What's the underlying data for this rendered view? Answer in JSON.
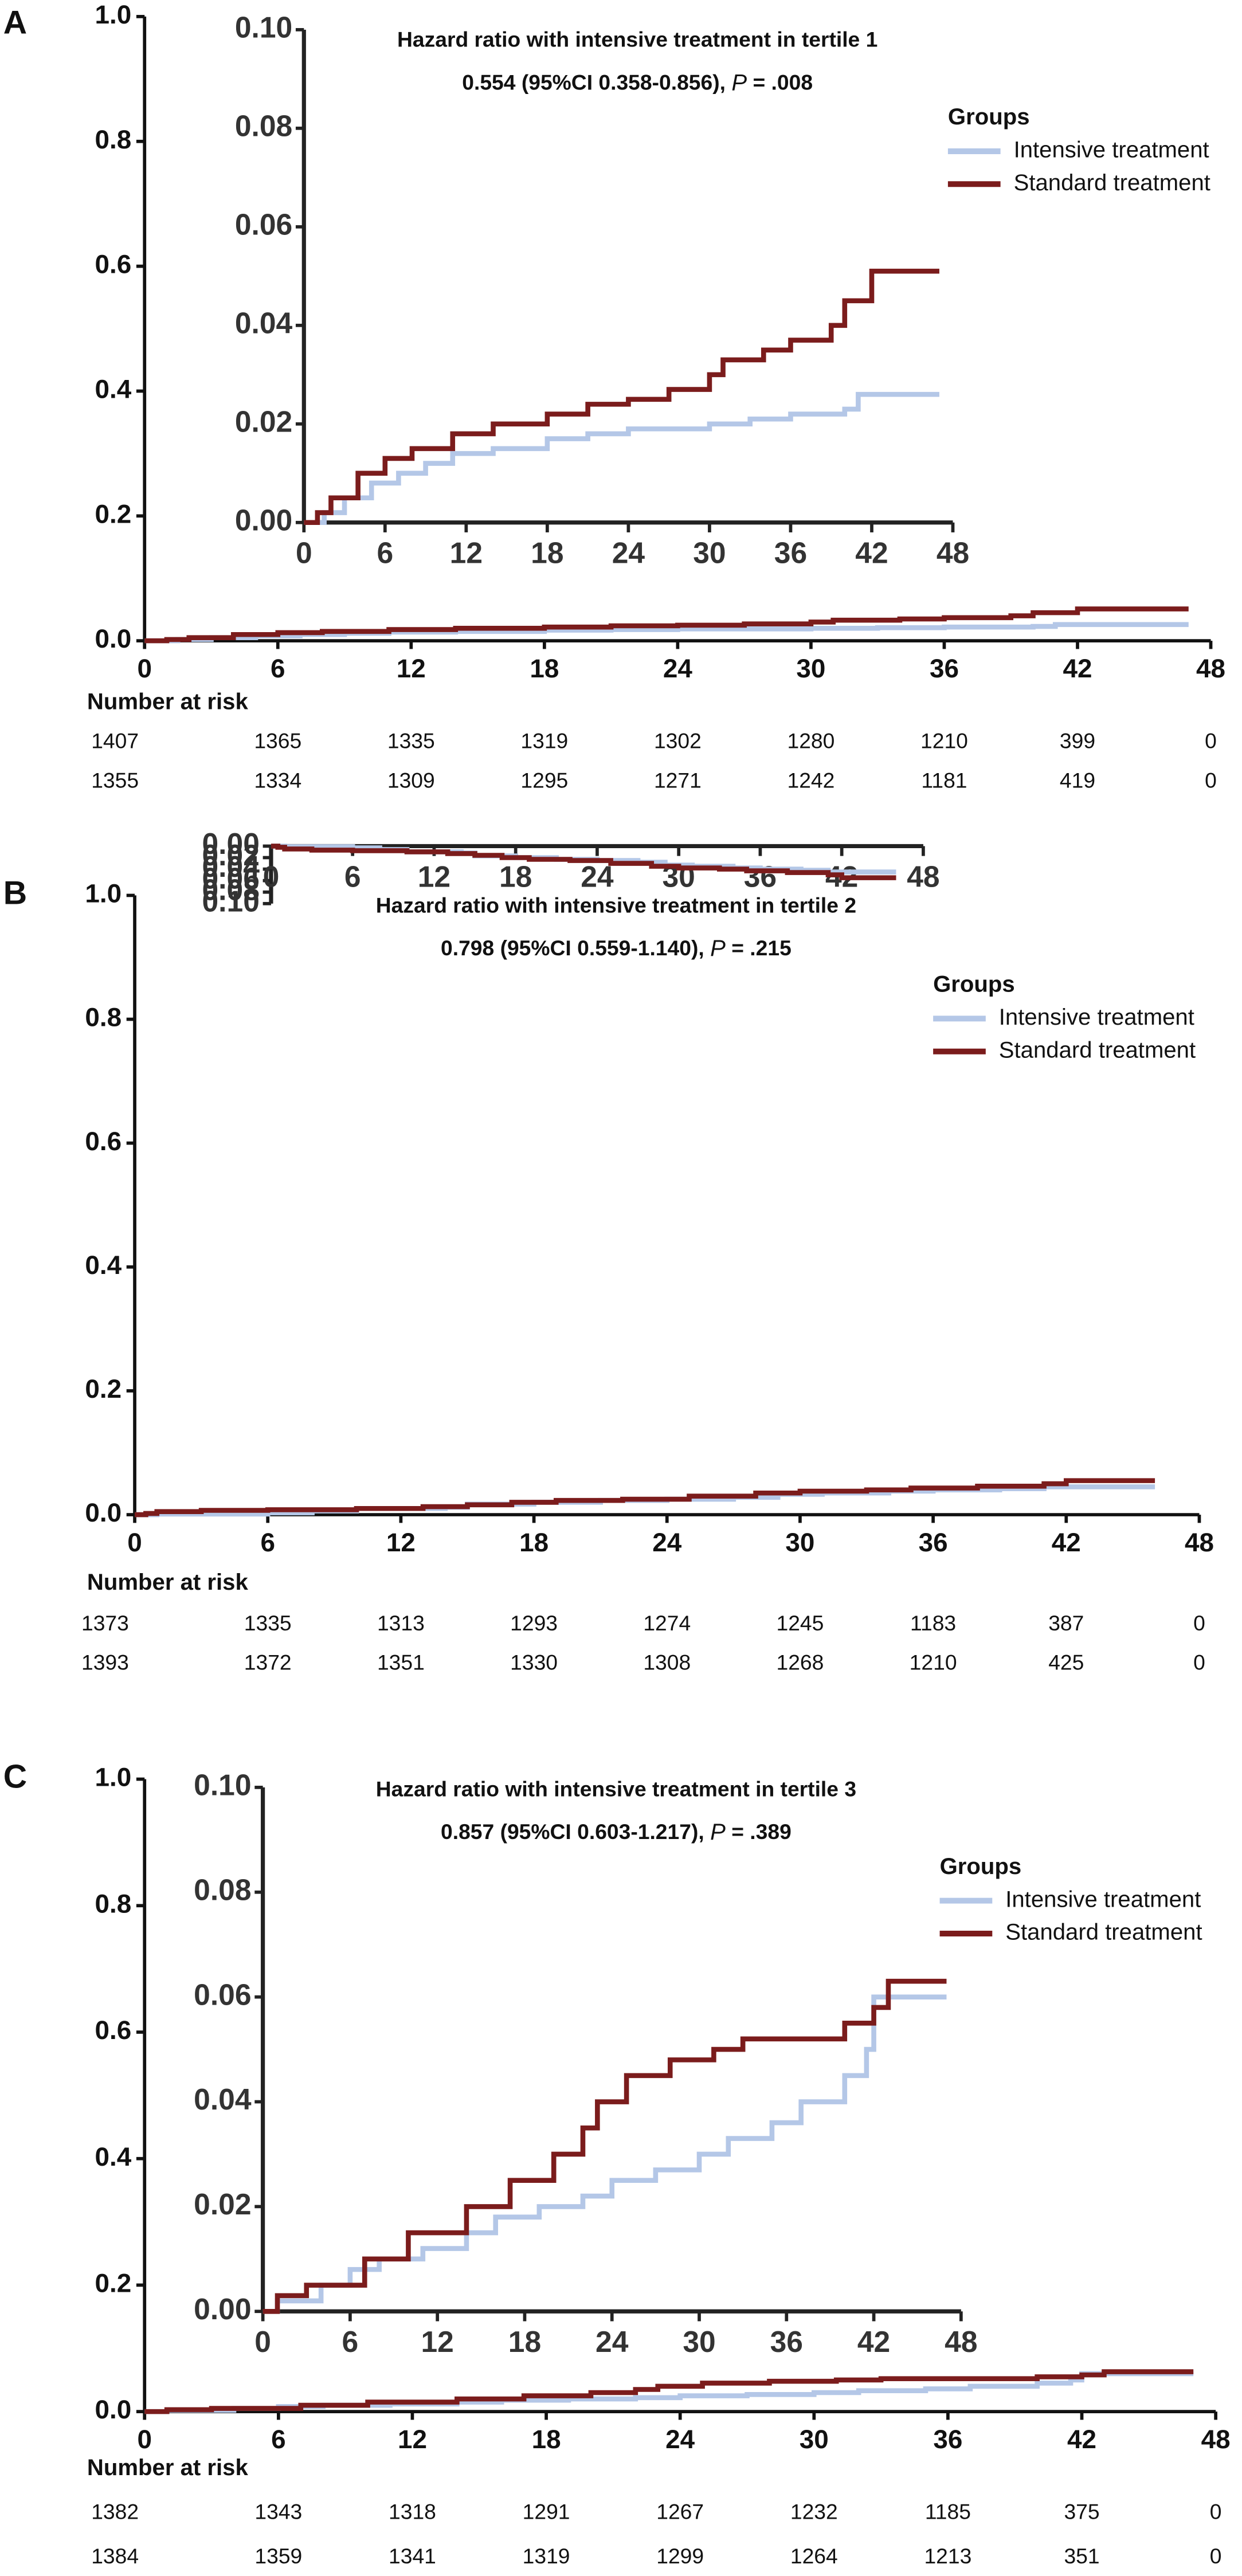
{
  "chart_data": [
    {
      "type": "line",
      "drawstyle": "steps-post",
      "panel_label": "A",
      "title": "Hazard ratio with intensive treatment in  tertile 1",
      "subtitle": [
        "0.554 (95%CI 0.358-0.856), ",
        "P",
        " = .008"
      ],
      "legend_title": "Groups",
      "xlim": [
        0,
        48
      ],
      "xticks": [
        0,
        6,
        12,
        18,
        24,
        30,
        36,
        42,
        48
      ],
      "ylim": [
        0,
        1
      ],
      "yticks": [
        {
          "value": 0,
          "label": "0.0"
        },
        0.2,
        0.4,
        0.6,
        0.8,
        {
          "value": 1,
          "label": "1.0"
        }
      ],
      "inset_ylim": [
        0,
        0.1
      ],
      "inset_yticks": [
        {
          "value": 0,
          "label": "0.00"
        },
        {
          "value": 0.02,
          "label": "0.02"
        },
        {
          "value": 0.04,
          "label": "0.04"
        },
        {
          "value": 0.06,
          "label": "0.06"
        },
        {
          "value": 0.08,
          "label": "0.08"
        },
        {
          "value": 0.1,
          "label": "0.10"
        }
      ],
      "series": [
        {
          "name": "Intensive treatment",
          "color": "#b4c7e7",
          "x": [
            0,
            1.5,
            3,
            5,
            7,
            9,
            11,
            14,
            18,
            21,
            24,
            30,
            33,
            36,
            40,
            41,
            47
          ],
          "values": [
            0,
            0.002,
            0.005,
            0.008,
            0.01,
            0.012,
            0.014,
            0.015,
            0.017,
            0.018,
            0.019,
            0.02,
            0.021,
            0.022,
            0.023,
            0.026,
            0.026
          ]
        },
        {
          "name": "Standard treatment",
          "color": "#7b1c1c",
          "x": [
            0,
            1,
            2,
            4,
            6,
            8,
            11,
            14,
            18,
            21,
            24,
            27,
            30,
            31,
            34,
            36,
            39,
            40,
            42,
            47
          ],
          "values": [
            0,
            0.002,
            0.005,
            0.01,
            0.013,
            0.015,
            0.018,
            0.02,
            0.022,
            0.024,
            0.025,
            0.027,
            0.03,
            0.033,
            0.035,
            0.037,
            0.04,
            0.045,
            0.051,
            0.051
          ]
        }
      ],
      "risk_table": {
        "title": "Number at risk",
        "rows": [
          [
            1407,
            1365,
            1335,
            1319,
            1302,
            1280,
            1210,
            399,
            0
          ],
          [
            1355,
            1334,
            1309,
            1295,
            1271,
            1242,
            1181,
            419,
            0
          ]
        ]
      }
    },
    {
      "type": "line",
      "drawstyle": "steps-post",
      "panel_label": "B",
      "title": "Hazard ratio with intensive treatment in  tertile 2",
      "subtitle": [
        "0.798 (95%CI 0.559-1.140), ",
        "P",
        " = .215"
      ],
      "legend_title": "Groups",
      "xlim": [
        0,
        48
      ],
      "xticks": [
        0,
        6,
        12,
        18,
        24,
        30,
        36,
        42,
        48
      ],
      "ylim": [
        0,
        1
      ],
      "yticks": [
        {
          "value": 0,
          "label": "0.0"
        },
        0.2,
        0.4,
        0.6,
        0.8,
        {
          "value": 1,
          "label": "1.0"
        }
      ],
      "inset_ylim": [
        0,
        0.1
      ],
      "inset_yticks": [
        {
          "value": 0,
          "label": "0.00"
        },
        {
          "value": 0.02,
          "label": "0.02"
        },
        {
          "value": 0.04,
          "label": "0.04"
        },
        {
          "value": 0.06,
          "label": "0.06"
        },
        {
          "value": 0.08,
          "label": "0.08"
        },
        {
          "value": 0.1,
          "label": "0.10"
        }
      ],
      "series": [
        {
          "name": "Intensive treatment",
          "color": "#b4c7e7",
          "x": [
            0,
            1,
            6,
            8,
            10,
            14,
            15,
            18,
            21,
            24,
            27,
            29,
            31,
            34,
            36,
            39,
            41,
            46
          ],
          "values": [
            0,
            0.001,
            0.003,
            0.006,
            0.01,
            0.012,
            0.017,
            0.02,
            0.023,
            0.025,
            0.028,
            0.033,
            0.035,
            0.038,
            0.04,
            0.042,
            0.045,
            0.045
          ]
        },
        {
          "name": "Standard treatment",
          "color": "#7b1c1c",
          "x": [
            0,
            0.5,
            1,
            3,
            6,
            10,
            13,
            15,
            17,
            19,
            22,
            25,
            28,
            30,
            33,
            35,
            38,
            41,
            42,
            46
          ],
          "values": [
            0,
            0.002,
            0.005,
            0.007,
            0.008,
            0.01,
            0.013,
            0.016,
            0.02,
            0.023,
            0.025,
            0.03,
            0.035,
            0.038,
            0.04,
            0.043,
            0.046,
            0.05,
            0.055,
            0.055
          ]
        }
      ],
      "risk_table": {
        "title": "Number at risk",
        "rows": [
          [
            1373,
            1335,
            1313,
            1293,
            1274,
            1245,
            1183,
            387,
            0
          ],
          [
            1393,
            1372,
            1351,
            1330,
            1308,
            1268,
            1210,
            425,
            0
          ]
        ]
      }
    },
    {
      "type": "line",
      "drawstyle": "steps-post",
      "panel_label": "C",
      "title": "Hazard ratio with intensive treatment in  tertile 3",
      "subtitle": [
        "0.857 (95%CI 0.603-1.217), ",
        "P",
        " = .389"
      ],
      "legend_title": "Groups",
      "xlim": [
        0,
        48
      ],
      "xticks": [
        0,
        6,
        12,
        18,
        24,
        30,
        36,
        42,
        48
      ],
      "ylim": [
        0,
        1
      ],
      "yticks": [
        {
          "value": 0,
          "label": "0.0"
        },
        0.2,
        0.4,
        0.6,
        0.8,
        {
          "value": 1,
          "label": "1.0"
        }
      ],
      "inset_ylim": [
        0,
        0.1
      ],
      "inset_yticks": [
        {
          "value": 0,
          "label": "0.00"
        },
        {
          "value": 0.02,
          "label": "0.02"
        },
        {
          "value": 0.04,
          "label": "0.04"
        },
        {
          "value": 0.06,
          "label": "0.06"
        },
        {
          "value": 0.08,
          "label": "0.08"
        },
        {
          "value": 0.1,
          "label": "0.10"
        }
      ],
      "series": [
        {
          "name": "Intensive treatment",
          "color": "#b4c7e7",
          "x": [
            0,
            1,
            4,
            6,
            8,
            11,
            14,
            16,
            19,
            22,
            24,
            27,
            30,
            32,
            35,
            37,
            40,
            41.5,
            42,
            47
          ],
          "values": [
            0,
            0.002,
            0.005,
            0.008,
            0.01,
            0.012,
            0.015,
            0.018,
            0.02,
            0.022,
            0.025,
            0.027,
            0.03,
            0.033,
            0.036,
            0.04,
            0.045,
            0.05,
            0.06,
            0.06
          ]
        },
        {
          "name": "Standard treatment",
          "color": "#7b1c1c",
          "x": [
            0,
            1,
            3,
            7,
            10,
            14,
            17,
            20,
            22,
            23,
            25,
            28,
            31,
            33,
            37,
            40,
            42,
            43,
            47
          ],
          "values": [
            0,
            0.003,
            0.005,
            0.01,
            0.015,
            0.02,
            0.025,
            0.03,
            0.035,
            0.04,
            0.045,
            0.048,
            0.05,
            0.052,
            0.052,
            0.055,
            0.058,
            0.063,
            0.063
          ]
        }
      ],
      "risk_table": {
        "title": "Number at risk",
        "rows": [
          [
            1382,
            1343,
            1318,
            1291,
            1267,
            1232,
            1185,
            375,
            0
          ],
          [
            1384,
            1359,
            1341,
            1319,
            1299,
            1264,
            1213,
            351,
            0
          ]
        ]
      }
    }
  ]
}
